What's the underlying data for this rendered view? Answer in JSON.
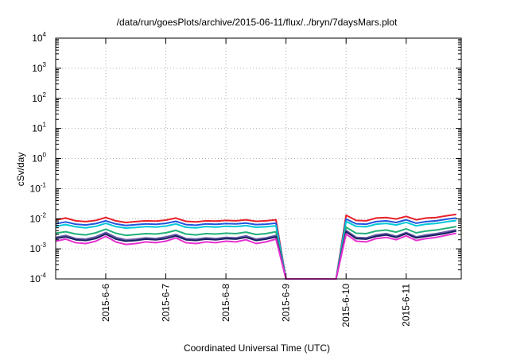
{
  "chart_data": {
    "type": "line",
    "title": "/data/run/goesPlots/archive/2015-06-11/flux/../bryn/7daysMars.plot",
    "xlabel": "Coordinated Universal Time (UTC)",
    "ylabel": "cSv/day",
    "yscale": "log",
    "ylim": [
      0.0001,
      10000
    ],
    "xlim": [
      "2015-06-05 04:00",
      "2015-06-11 22:00"
    ],
    "x_ticks": [
      "2015-6-6",
      "2015-6-7",
      "2015-6-8",
      "2015-6-9",
      "2015-6-10",
      "2015-6-11"
    ],
    "y_ticks": [
      {
        "value": 0.0001,
        "base": "10",
        "exp": "-4"
      },
      {
        "value": 0.001,
        "base": "10",
        "exp": "-3"
      },
      {
        "value": 0.01,
        "base": "10",
        "exp": "-2"
      },
      {
        "value": 0.1,
        "base": "10",
        "exp": "-1"
      },
      {
        "value": 1,
        "base": "10",
        "exp": "0"
      },
      {
        "value": 10,
        "base": "10",
        "exp": "1"
      },
      {
        "value": 100,
        "base": "10",
        "exp": "2"
      },
      {
        "value": 1000,
        "base": "10",
        "exp": "3"
      },
      {
        "value": 10000,
        "base": "10",
        "exp": "4"
      }
    ],
    "grid": true,
    "legend": "none",
    "x": [
      "2015-06-05 04:00",
      "2015-06-05 08:00",
      "2015-06-05 12:00",
      "2015-06-05 16:00",
      "2015-06-05 20:00",
      "2015-06-06 00:00",
      "2015-06-06 04:00",
      "2015-06-06 08:00",
      "2015-06-06 12:00",
      "2015-06-06 16:00",
      "2015-06-06 20:00",
      "2015-06-07 00:00",
      "2015-06-07 04:00",
      "2015-06-07 08:00",
      "2015-06-07 12:00",
      "2015-06-07 16:00",
      "2015-06-07 20:00",
      "2015-06-08 00:00",
      "2015-06-08 04:00",
      "2015-06-08 08:00",
      "2015-06-08 12:00",
      "2015-06-08 16:00",
      "2015-06-08 20:00",
      "2015-06-09 00:00",
      "2015-06-09 04:00",
      "2015-06-09 08:00",
      "2015-06-09 12:00",
      "2015-06-09 16:00",
      "2015-06-09 20:00",
      "2015-06-10 00:00",
      "2015-06-10 04:00",
      "2015-06-10 08:00",
      "2015-06-10 12:00",
      "2015-06-10 16:00",
      "2015-06-10 20:00",
      "2015-06-11 00:00",
      "2015-06-11 04:00",
      "2015-06-11 08:00",
      "2015-06-11 12:00",
      "2015-06-11 16:00",
      "2015-06-11 20:00"
    ],
    "series": [
      {
        "color": "#e8202a",
        "values": [
          0.009,
          0.0105,
          0.0085,
          0.008,
          0.0088,
          0.011,
          0.0085,
          0.0075,
          0.008,
          0.0085,
          0.0083,
          0.009,
          0.0105,
          0.0082,
          0.0078,
          0.0085,
          0.0083,
          0.0088,
          0.0085,
          0.0092,
          0.0082,
          0.0085,
          0.0092,
          8e-05,
          8e-05,
          8e-05,
          8e-05,
          8e-05,
          8e-05,
          0.013,
          0.0088,
          0.0085,
          0.0105,
          0.011,
          0.0098,
          0.012,
          0.0092,
          0.0105,
          0.011,
          0.0125,
          0.014
        ]
      },
      {
        "color": "#2255dd",
        "values": [
          0.0068,
          0.0078,
          0.0066,
          0.0062,
          0.0069,
          0.0085,
          0.0067,
          0.006,
          0.0063,
          0.0067,
          0.0065,
          0.007,
          0.0082,
          0.0064,
          0.0061,
          0.0067,
          0.0065,
          0.0069,
          0.0067,
          0.0072,
          0.0064,
          0.0066,
          0.0071,
          8e-05,
          8e-05,
          8e-05,
          8e-05,
          8e-05,
          8e-05,
          0.0098,
          0.0068,
          0.0066,
          0.008,
          0.0085,
          0.0075,
          0.0092,
          0.0071,
          0.008,
          0.0085,
          0.0096,
          0.0105
        ]
      },
      {
        "color": "#00c8d8",
        "values": [
          0.0056,
          0.0064,
          0.0054,
          0.005,
          0.0056,
          0.007,
          0.0055,
          0.0049,
          0.0051,
          0.0055,
          0.0053,
          0.0057,
          0.0067,
          0.0052,
          0.005,
          0.0055,
          0.0053,
          0.0056,
          0.0055,
          0.0059,
          0.0052,
          0.0054,
          0.0058,
          8e-05,
          8e-05,
          8e-05,
          8e-05,
          8e-05,
          8e-05,
          0.0081,
          0.0056,
          0.0054,
          0.0066,
          0.007,
          0.0062,
          0.0076,
          0.0058,
          0.0066,
          0.007,
          0.0079,
          0.0087
        ]
      },
      {
        "color": "#22b07a",
        "values": [
          0.0033,
          0.0037,
          0.0031,
          0.0029,
          0.0034,
          0.0045,
          0.0033,
          0.0028,
          0.003,
          0.0032,
          0.0031,
          0.0034,
          0.0041,
          0.0031,
          0.0029,
          0.0032,
          0.0031,
          0.0033,
          0.0032,
          0.0036,
          0.003,
          0.0032,
          0.0037,
          8e-05,
          8e-05,
          8e-05,
          8e-05,
          8e-05,
          8e-05,
          0.0052,
          0.0033,
          0.0032,
          0.0039,
          0.0042,
          0.0036,
          0.0046,
          0.0034,
          0.0039,
          0.0042,
          0.0048,
          0.0055
        ]
      },
      {
        "color": "#6a5aa8",
        "values": [
          0.0024,
          0.0028,
          0.0022,
          0.0021,
          0.0025,
          0.0035,
          0.0024,
          0.002,
          0.0021,
          0.0023,
          0.0022,
          0.0025,
          0.003,
          0.0022,
          0.0021,
          0.0023,
          0.0022,
          0.0024,
          0.0023,
          0.0027,
          0.0021,
          0.0023,
          0.0028,
          8e-05,
          8e-05,
          8e-05,
          8e-05,
          8e-05,
          8e-05,
          0.0041,
          0.0024,
          0.0023,
          0.0029,
          0.0032,
          0.0026,
          0.0035,
          0.0025,
          0.0029,
          0.0032,
          0.0037,
          0.0043
        ]
      },
      {
        "color": "#152060",
        "values": [
          0.0022,
          0.0025,
          0.002,
          0.0019,
          0.0022,
          0.0031,
          0.0021,
          0.0018,
          0.0019,
          0.0021,
          0.002,
          0.0022,
          0.0027,
          0.002,
          0.0019,
          0.0021,
          0.002,
          0.0022,
          0.0021,
          0.0024,
          0.0019,
          0.0021,
          0.0025,
          8e-05,
          8e-05,
          8e-05,
          8e-05,
          8e-05,
          8e-05,
          0.0037,
          0.0022,
          0.0021,
          0.0026,
          0.0029,
          0.0024,
          0.0032,
          0.0023,
          0.0026,
          0.0029,
          0.0033,
          0.0039
        ]
      },
      {
        "color": "#e830d0",
        "values": [
          0.0018,
          0.0021,
          0.0016,
          0.0015,
          0.0018,
          0.0026,
          0.0017,
          0.0014,
          0.0015,
          0.0017,
          0.0016,
          0.0018,
          0.0023,
          0.0016,
          0.0015,
          0.0017,
          0.0016,
          0.0018,
          0.0017,
          0.002,
          0.0015,
          0.0017,
          0.0021,
          8e-05,
          8e-05,
          8e-05,
          8e-05,
          8e-05,
          8e-05,
          0.0031,
          0.0018,
          0.0017,
          0.0022,
          0.0024,
          0.002,
          0.0027,
          0.0019,
          0.0022,
          0.0024,
          0.0028,
          0.0033
        ]
      }
    ]
  }
}
